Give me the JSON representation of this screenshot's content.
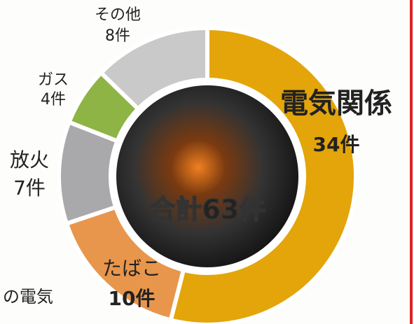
{
  "chart_data": {
    "type": "pie",
    "categories": [
      "電気関係",
      "たばこ",
      "放火",
      "ガス",
      "その他"
    ],
    "values": [
      34,
      10,
      7,
      4,
      8
    ],
    "value_labels": [
      "34件",
      "10件",
      "7件",
      "4件",
      "8件"
    ],
    "colors": [
      "#e3a50a",
      "#e8964c",
      "#a9a9ab",
      "#8db444",
      "#c9c9c9"
    ],
    "donut": true,
    "center_label": "合計63件",
    "annotations": [
      "の電気"
    ]
  }
}
